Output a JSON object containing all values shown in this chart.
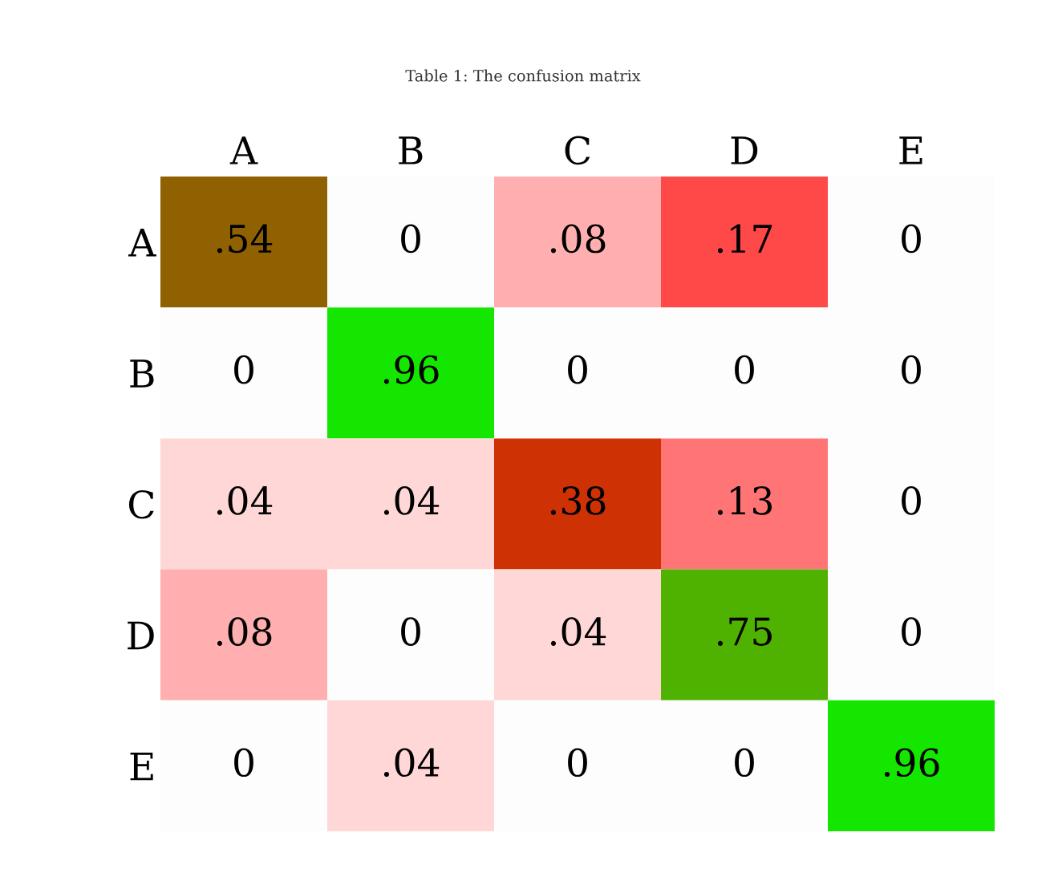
{
  "chart_data": {
    "type": "heatmap",
    "title": "Table 1: The confusion matrix",
    "categories": [
      "A",
      "B",
      "C",
      "D",
      "E"
    ],
    "y_categories": [
      "A",
      "B",
      "C",
      "D",
      "E"
    ],
    "cells": [
      [
        0.54,
        0,
        0.08,
        0.17,
        0
      ],
      [
        0,
        0.96,
        0,
        0,
        0
      ],
      [
        0.04,
        0.04,
        0.38,
        0.13,
        0
      ],
      [
        0.08,
        0,
        0.04,
        0.75,
        0
      ],
      [
        0,
        0.04,
        0,
        0,
        0.96
      ]
    ],
    "cell_labels": [
      [
        ".54",
        "0",
        ".08",
        ".17",
        "0"
      ],
      [
        "0",
        ".96",
        "0",
        "0",
        "0"
      ],
      [
        ".04",
        ".04",
        ".38",
        ".13",
        "0"
      ],
      [
        ".08",
        "0",
        ".04",
        ".75",
        "0"
      ],
      [
        "0",
        ".04",
        "0",
        "0",
        ".96"
      ]
    ]
  }
}
